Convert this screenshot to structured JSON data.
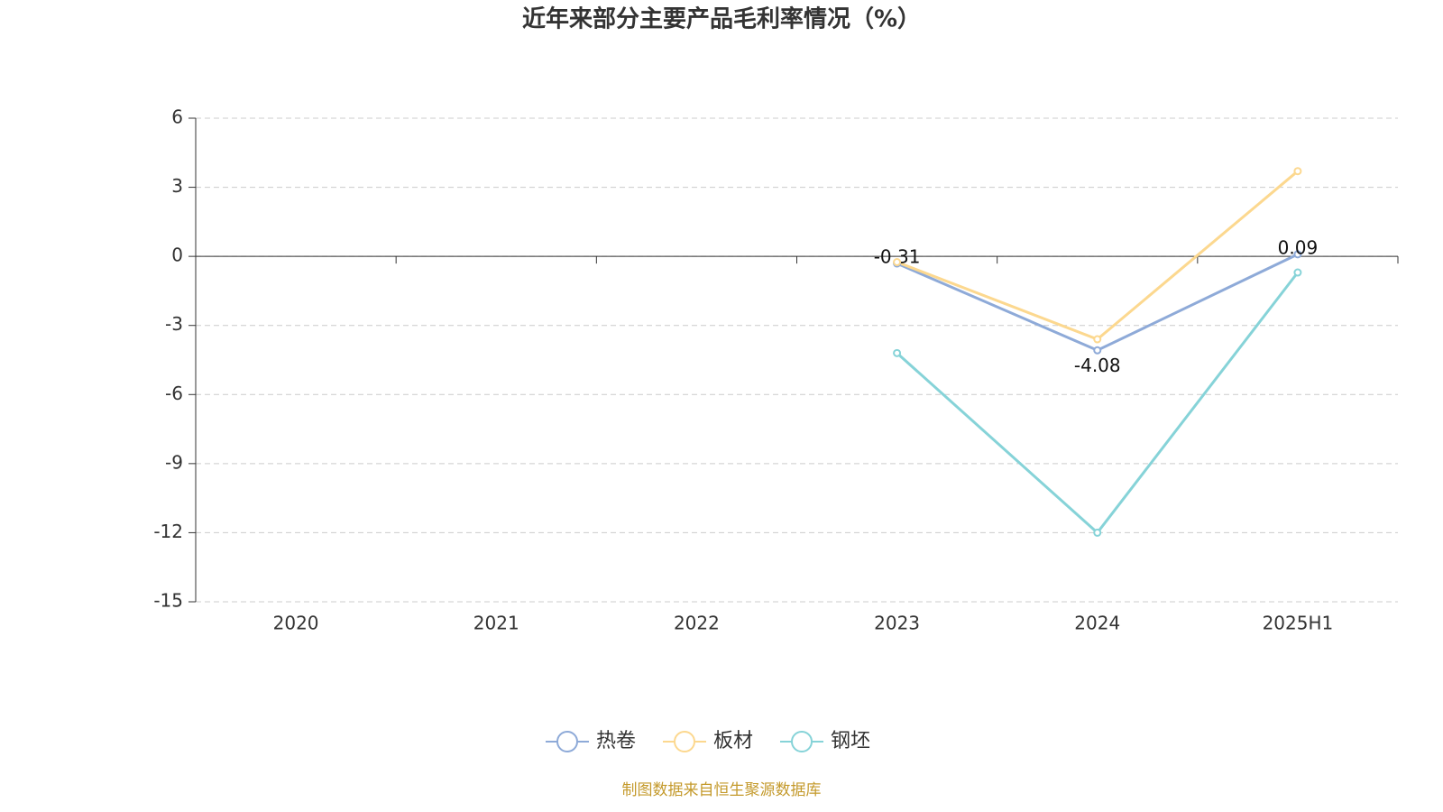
{
  "chart_data": {
    "type": "line",
    "title": "近年来部分主要产品毛利率情况（%）",
    "categories": [
      "2020",
      "2021",
      "2022",
      "2023",
      "2024",
      "2025H1"
    ],
    "series": [
      {
        "name": "热卷",
        "color": "#8eaad8",
        "labels": true,
        "values": [
          null,
          null,
          null,
          -0.31,
          -4.08,
          0.09
        ]
      },
      {
        "name": "板材",
        "color": "#fcd88f",
        "labels": false,
        "values": [
          null,
          null,
          null,
          -0.25,
          -3.6,
          3.7
        ]
      },
      {
        "name": "钢坯",
        "color": "#86d3d8",
        "labels": false,
        "values": [
          null,
          null,
          null,
          -4.2,
          -12,
          -0.7
        ]
      }
    ],
    "ylim": [
      -15,
      6
    ],
    "yticks": [
      6,
      3,
      0,
      -3,
      -6,
      -9,
      -12,
      -15
    ],
    "grid": true,
    "source": "制图数据来自恒生聚源数据库"
  }
}
